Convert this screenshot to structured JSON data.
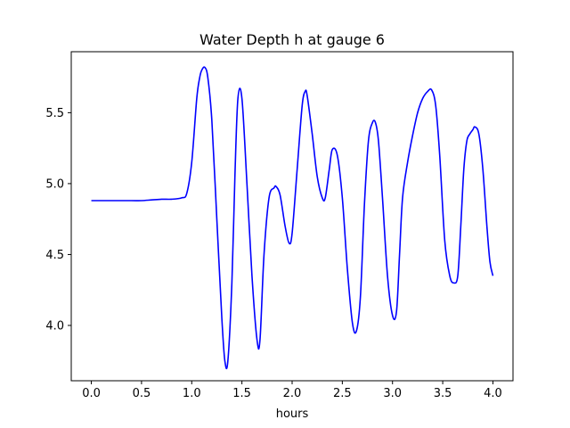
{
  "chart_data": {
    "type": "line",
    "title": "Water Depth h at gauge 6",
    "xlabel": "hours",
    "ylabel": "",
    "xlim": [
      -0.2,
      4.2
    ],
    "ylim": [
      3.61,
      5.93
    ],
    "xticks": [
      0.0,
      0.5,
      1.0,
      1.5,
      2.0,
      2.5,
      3.0,
      3.5,
      4.0
    ],
    "xtick_labels": [
      "0.0",
      "0.5",
      "1.0",
      "1.5",
      "2.0",
      "2.5",
      "3.0",
      "3.5",
      "4.0"
    ],
    "yticks": [
      4.0,
      4.5,
      5.0,
      5.5
    ],
    "ytick_labels": [
      "4.0",
      "4.5",
      "5.0",
      "5.5"
    ],
    "grid": false,
    "series": [
      {
        "color": "#0000ff",
        "x": [
          0.0,
          0.2,
          0.4,
          0.5,
          0.6,
          0.7,
          0.8,
          0.9,
          0.95,
          1.0,
          1.05,
          1.08,
          1.1,
          1.13,
          1.16,
          1.2,
          1.25,
          1.3,
          1.33,
          1.36,
          1.4,
          1.43,
          1.46,
          1.5,
          1.55,
          1.6,
          1.65,
          1.68,
          1.72,
          1.77,
          1.82,
          1.84,
          1.88,
          1.93,
          1.97,
          2.0,
          2.05,
          2.1,
          2.13,
          2.15,
          2.2,
          2.25,
          2.3,
          2.33,
          2.37,
          2.4,
          2.45,
          2.5,
          2.55,
          2.6,
          2.64,
          2.68,
          2.72,
          2.76,
          2.8,
          2.83,
          2.86,
          2.9,
          2.95,
          3.0,
          3.04,
          3.07,
          3.1,
          3.15,
          3.2,
          3.25,
          3.3,
          3.35,
          3.39,
          3.43,
          3.47,
          3.52,
          3.57,
          3.61,
          3.65,
          3.68,
          3.71,
          3.74,
          3.77,
          3.8,
          3.82,
          3.86,
          3.9,
          3.94,
          3.97,
          4.0
        ],
        "y": [
          4.88,
          4.88,
          4.88,
          4.88,
          4.885,
          4.89,
          4.89,
          4.9,
          4.93,
          5.15,
          5.6,
          5.75,
          5.8,
          5.82,
          5.75,
          5.45,
          4.75,
          4.05,
          3.75,
          3.75,
          4.3,
          5.05,
          5.6,
          5.6,
          5.0,
          4.35,
          3.9,
          3.9,
          4.5,
          4.9,
          4.97,
          4.98,
          4.92,
          4.7,
          4.58,
          4.65,
          5.1,
          5.55,
          5.65,
          5.62,
          5.35,
          5.05,
          4.9,
          4.9,
          5.1,
          5.24,
          5.2,
          4.9,
          4.4,
          4.02,
          3.96,
          4.2,
          4.85,
          5.3,
          5.43,
          5.43,
          5.3,
          4.9,
          4.35,
          4.07,
          4.1,
          4.5,
          4.9,
          5.15,
          5.34,
          5.5,
          5.6,
          5.65,
          5.66,
          5.55,
          5.2,
          4.6,
          4.35,
          4.3,
          4.35,
          4.7,
          5.1,
          5.3,
          5.35,
          5.38,
          5.4,
          5.35,
          5.1,
          4.7,
          4.45,
          4.35
        ]
      }
    ]
  }
}
